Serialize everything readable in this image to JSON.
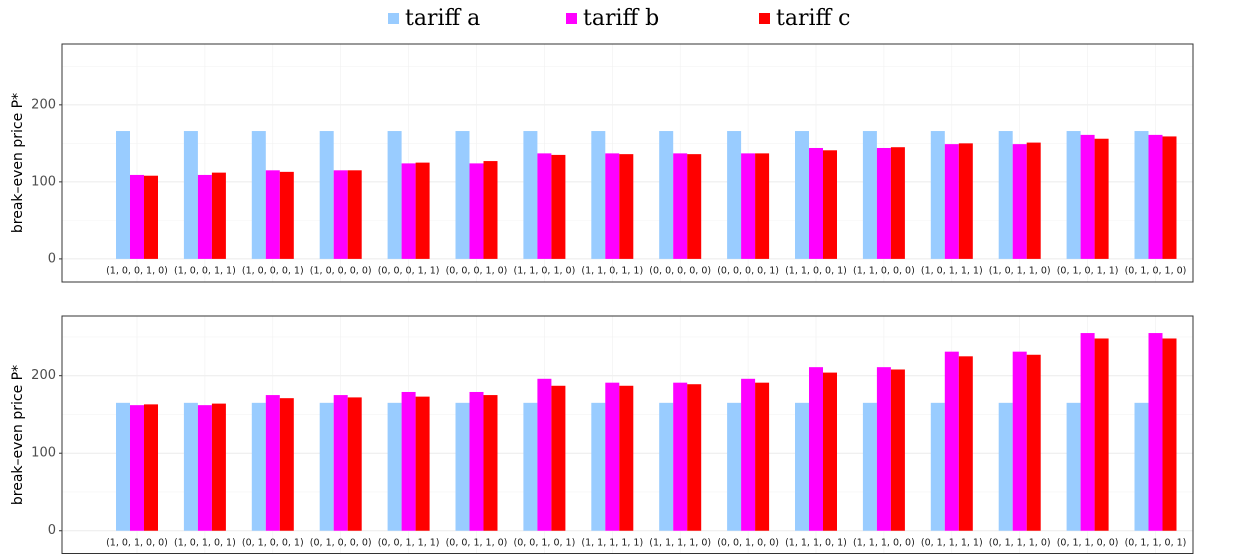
{
  "chart_data": [
    {
      "type": "bar",
      "ylabel": "break–even price P*",
      "categories": [
        "(1, 0, 0, 1, 0)",
        "(1, 0, 0, 1, 1)",
        "(1, 0, 0, 0, 1)",
        "(1, 0, 0, 0, 0)",
        "(0, 0, 0, 1, 1)",
        "(0, 0, 0, 1, 0)",
        "(1, 1, 0, 1, 0)",
        "(1, 1, 0, 1, 1)",
        "(0, 0, 0, 0, 0)",
        "(0, 0, 0, 0, 1)",
        "(1, 1, 0, 0, 1)",
        "(1, 1, 0, 0, 0)",
        "(1, 0, 1, 1, 1)",
        "(1, 0, 1, 1, 0)",
        "(0, 1, 0, 1, 1)",
        "(0, 1, 0, 1, 0)"
      ],
      "series": [
        {
          "name": "tariff a",
          "color": "#99ccff",
          "values": [
            166,
            166,
            166,
            166,
            166,
            166,
            166,
            166,
            166,
            166,
            166,
            166,
            166,
            166,
            166,
            166
          ]
        },
        {
          "name": "tariff b",
          "color": "#ff00ff",
          "values": [
            109,
            109,
            115,
            115,
            124,
            124,
            137,
            137,
            137,
            137,
            144,
            144,
            149,
            149,
            161,
            161
          ]
        },
        {
          "name": "tariff c",
          "color": "#ff0000",
          "values": [
            108,
            112,
            113,
            115,
            125,
            127,
            135,
            136,
            136,
            137,
            141,
            145,
            150,
            151,
            156,
            159
          ]
        }
      ],
      "ylim": [
        -30,
        279
      ],
      "yticks": [
        0,
        100,
        200
      ],
      "grid": true
    },
    {
      "type": "bar",
      "ylabel": "break–even price P*",
      "categories": [
        "(1, 0, 1, 0, 0)",
        "(1, 0, 1, 0, 1)",
        "(0, 1, 0, 0, 1)",
        "(0, 1, 0, 0, 0)",
        "(0, 0, 1, 1, 1)",
        "(0, 0, 1, 1, 0)",
        "(0, 0, 1, 0, 1)",
        "(1, 1, 1, 1, 1)",
        "(1, 1, 1, 1, 0)",
        "(0, 0, 1, 0, 0)",
        "(1, 1, 1, 0, 1)",
        "(1, 1, 1, 0, 0)",
        "(0, 1, 1, 1, 1)",
        "(0, 1, 1, 1, 0)",
        "(0, 1, 1, 0, 0)",
        "(0, 1, 1, 0, 1)"
      ],
      "series": [
        {
          "color": "#99ccff",
          "values": [
            165,
            165,
            165,
            165,
            165,
            165,
            165,
            165,
            165,
            165,
            165,
            165,
            165,
            165,
            165,
            165
          ]
        },
        {
          "color": "#ff00ff",
          "values": [
            162,
            162,
            175,
            175,
            179,
            179,
            196,
            191,
            191,
            196,
            211,
            211,
            231,
            231,
            255,
            255
          ]
        },
        {
          "color": "#ff0000",
          "values": [
            163,
            164,
            171,
            172,
            173,
            175,
            187,
            187,
            189,
            191,
            204,
            208,
            225,
            227,
            248,
            248
          ]
        }
      ],
      "ylim": [
        -30,
        277
      ],
      "yticks": [
        0,
        100,
        200
      ],
      "grid": true
    }
  ]
}
